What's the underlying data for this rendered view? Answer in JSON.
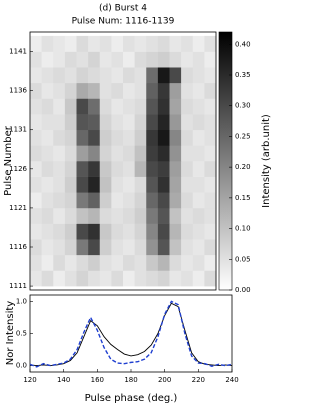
{
  "chart_data": [
    {
      "type": "heatmap",
      "title": "(d) Burst 4",
      "subtitle": "Pulse Num: 1116-1139",
      "y_label": "Pulse Number",
      "xlim": [
        120,
        240
      ],
      "ylim": [
        1110.5,
        1143.5
      ],
      "yticks": [
        1111,
        1116,
        1121,
        1126,
        1131,
        1136,
        1141
      ],
      "x": [
        123.75,
        131.25,
        138.75,
        146.25,
        153.75,
        161.25,
        168.75,
        176.25,
        183.75,
        191.25,
        198.75,
        206.25,
        213.75,
        221.25,
        228.75,
        236.25
      ],
      "y": [
        1112,
        1114,
        1116,
        1118,
        1120,
        1122,
        1124,
        1126,
        1128,
        1130,
        1132,
        1134,
        1136,
        1138,
        1140,
        1142
      ],
      "values": [
        [
          0.04,
          0.06,
          0.03,
          0.05,
          0.07,
          0.05,
          0.04,
          0.06,
          0.03,
          0.05,
          0.06,
          0.07,
          0.04,
          0.05,
          0.03,
          0.06
        ],
        [
          0.05,
          0.03,
          0.06,
          0.04,
          0.06,
          0.08,
          0.05,
          0.04,
          0.06,
          0.05,
          0.09,
          0.12,
          0.06,
          0.04,
          0.05,
          0.03
        ],
        [
          0.06,
          0.04,
          0.05,
          0.07,
          0.22,
          0.3,
          0.08,
          0.05,
          0.04,
          0.06,
          0.18,
          0.28,
          0.1,
          0.05,
          0.04,
          0.06
        ],
        [
          0.04,
          0.05,
          0.06,
          0.08,
          0.3,
          0.34,
          0.09,
          0.06,
          0.05,
          0.07,
          0.2,
          0.3,
          0.12,
          0.06,
          0.05,
          0.04
        ],
        [
          0.05,
          0.06,
          0.04,
          0.06,
          0.1,
          0.12,
          0.06,
          0.05,
          0.06,
          0.08,
          0.22,
          0.28,
          0.1,
          0.05,
          0.06,
          0.05
        ],
        [
          0.03,
          0.05,
          0.06,
          0.07,
          0.22,
          0.26,
          0.08,
          0.04,
          0.05,
          0.07,
          0.25,
          0.3,
          0.14,
          0.06,
          0.04,
          0.05
        ],
        [
          0.05,
          0.04,
          0.05,
          0.08,
          0.3,
          0.36,
          0.1,
          0.05,
          0.04,
          0.06,
          0.28,
          0.34,
          0.15,
          0.05,
          0.05,
          0.04
        ],
        [
          0.04,
          0.06,
          0.05,
          0.07,
          0.28,
          0.33,
          0.09,
          0.06,
          0.05,
          0.12,
          0.3,
          0.32,
          0.16,
          0.06,
          0.04,
          0.06
        ],
        [
          0.06,
          0.05,
          0.04,
          0.06,
          0.16,
          0.2,
          0.07,
          0.05,
          0.06,
          0.1,
          0.32,
          0.35,
          0.18,
          0.05,
          0.05,
          0.04
        ],
        [
          0.05,
          0.04,
          0.06,
          0.07,
          0.25,
          0.3,
          0.08,
          0.06,
          0.05,
          0.08,
          0.33,
          0.38,
          0.2,
          0.06,
          0.04,
          0.05
        ],
        [
          0.04,
          0.05,
          0.05,
          0.08,
          0.28,
          0.27,
          0.07,
          0.05,
          0.04,
          0.07,
          0.3,
          0.36,
          0.17,
          0.05,
          0.06,
          0.05
        ],
        [
          0.05,
          0.06,
          0.04,
          0.09,
          0.3,
          0.24,
          0.06,
          0.04,
          0.05,
          0.06,
          0.28,
          0.34,
          0.15,
          0.06,
          0.05,
          0.04
        ],
        [
          0.06,
          0.04,
          0.05,
          0.07,
          0.14,
          0.12,
          0.05,
          0.06,
          0.04,
          0.05,
          0.26,
          0.33,
          0.16,
          0.05,
          0.04,
          0.06
        ],
        [
          0.04,
          0.05,
          0.06,
          0.05,
          0.07,
          0.06,
          0.05,
          0.04,
          0.06,
          0.05,
          0.24,
          0.38,
          0.3,
          0.06,
          0.05,
          0.04
        ],
        [
          0.05,
          0.03,
          0.04,
          0.06,
          0.05,
          0.07,
          0.04,
          0.05,
          0.03,
          0.06,
          0.07,
          0.08,
          0.06,
          0.04,
          0.05,
          0.03
        ],
        [
          0.03,
          0.05,
          0.04,
          0.03,
          0.06,
          0.04,
          0.05,
          0.03,
          0.05,
          0.04,
          0.05,
          0.06,
          0.04,
          0.05,
          0.03,
          0.05
        ]
      ],
      "colorbar_label": "Intensity (arb.unit)",
      "zlim": [
        0,
        0.42
      ],
      "zticks": [
        {
          "value": 0,
          "label": "0.00"
        },
        {
          "value": 0.05,
          "label": "0.05"
        },
        {
          "value": 0.1,
          "label": "0.10"
        },
        {
          "value": 0.15,
          "label": "0.15"
        },
        {
          "value": 0.2,
          "label": "0.20"
        },
        {
          "value": 0.25,
          "label": "0.25"
        },
        {
          "value": 0.3,
          "label": "0.30"
        },
        {
          "value": 0.35,
          "label": "0.35"
        },
        {
          "value": 0.4,
          "label": "0.40"
        }
      ]
    },
    {
      "type": "line",
      "x_label": "Pulse phase (deg.)",
      "y_label": "Nor Intensity",
      "xlim": [
        120,
        240
      ],
      "xticks": [
        120,
        140,
        160,
        180,
        200,
        220,
        240
      ],
      "ylim": [
        -0.1,
        1.1
      ],
      "yticks": [
        {
          "value": 0,
          "label": "0.0"
        },
        {
          "value": 0.5,
          "label": "0.5"
        },
        {
          "value": 1,
          "label": "1.0"
        }
      ],
      "x": [
        120,
        124,
        128,
        132,
        136,
        140,
        144,
        148,
        152,
        156,
        160,
        164,
        168,
        172,
        176,
        180,
        184,
        188,
        192,
        196,
        200,
        204,
        208,
        212,
        216,
        220,
        224,
        228,
        232,
        236,
        240
      ],
      "series": [
        {
          "color": "#000000",
          "linestyle": "solid",
          "values": [
            0.01,
            0,
            0.01,
            0,
            0.01,
            0.03,
            0.08,
            0.2,
            0.45,
            0.7,
            0.62,
            0.45,
            0.33,
            0.25,
            0.18,
            0.15,
            0.17,
            0.22,
            0.32,
            0.5,
            0.78,
            0.97,
            0.92,
            0.55,
            0.2,
            0.06,
            0.02,
            0.01,
            0,
            0.01,
            0
          ]
        },
        {
          "color": "#1f3fd0",
          "linestyle": "dashed",
          "values": [
            0.02,
            -0.02,
            0.03,
            0,
            0.02,
            0.04,
            0.1,
            0.25,
            0.52,
            0.75,
            0.55,
            0.28,
            0.1,
            0.04,
            0.03,
            0.05,
            0.06,
            0.1,
            0.2,
            0.45,
            0.8,
            1.0,
            0.95,
            0.5,
            0.15,
            0.04,
            0.03,
            -0.01,
            0.02,
            0,
            0.02
          ]
        }
      ]
    }
  ]
}
